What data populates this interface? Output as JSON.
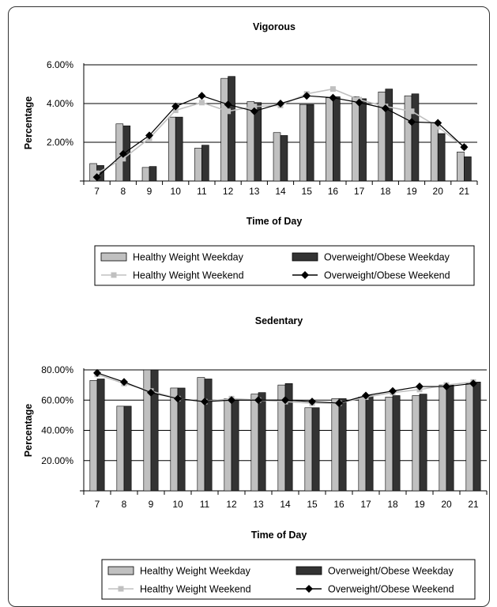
{
  "chart_data": [
    {
      "type": "bar",
      "title": "Vigorous",
      "xlabel": "Time of Day",
      "ylabel": "Percentage",
      "ylim": [
        0,
        6
      ],
      "yticks": [
        "2.00%",
        "4.00%",
        "6.00%"
      ],
      "categories": [
        "7",
        "8",
        "9",
        "10",
        "11",
        "12",
        "13",
        "14",
        "15",
        "16",
        "17",
        "18",
        "19",
        "20",
        "21"
      ],
      "series": [
        {
          "name": "Healthy Weight Weekday",
          "kind": "bar",
          "color": "#c0c0c0",
          "values": [
            0.9,
            2.95,
            0.7,
            3.3,
            1.7,
            5.3,
            4.1,
            2.5,
            3.95,
            4.3,
            4.35,
            4.6,
            4.4,
            3.0,
            1.5
          ]
        },
        {
          "name": "Overweight/Obese Weekday",
          "kind": "bar",
          "color": "#333333",
          "values": [
            0.8,
            2.85,
            0.75,
            3.3,
            1.85,
            5.4,
            4.05,
            2.35,
            3.95,
            4.35,
            4.25,
            4.75,
            4.5,
            2.45,
            1.25
          ]
        },
        {
          "name": "Healthy Weight Weekend",
          "kind": "line",
          "color": "#c0c0c0",
          "values": [
            0.4,
            1.15,
            2.2,
            3.65,
            4.05,
            3.6,
            3.85,
            3.9,
            4.5,
            4.75,
            4.2,
            3.85,
            3.6,
            2.8,
            1.75
          ]
        },
        {
          "name": "Overweight/Obese Weekend",
          "kind": "line",
          "color": "#000000",
          "values": [
            0.2,
            1.4,
            2.35,
            3.85,
            4.4,
            3.95,
            3.6,
            4.0,
            4.4,
            4.3,
            4.05,
            3.75,
            3.05,
            3.0,
            1.75
          ]
        }
      ]
    },
    {
      "type": "bar",
      "title": "Sedentary",
      "xlabel": "Time of Day",
      "ylabel": "Percentage",
      "ylim": [
        0,
        80
      ],
      "yticks": [
        "20.00%",
        "40.00%",
        "60.00%",
        "80.00%"
      ],
      "categories": [
        "7",
        "8",
        "9",
        "10",
        "11",
        "12",
        "13",
        "14",
        "15",
        "16",
        "17",
        "18",
        "19",
        "20",
        "21"
      ],
      "series": [
        {
          "name": "Healthy Weight Weekday",
          "kind": "bar",
          "color": "#c0c0c0",
          "values": [
            73,
            56,
            80,
            68,
            75,
            61,
            64,
            70,
            55,
            61,
            62,
            62,
            63,
            70,
            71
          ]
        },
        {
          "name": "Overweight/Obese Weekday",
          "kind": "bar",
          "color": "#333333",
          "values": [
            74,
            56,
            80,
            68,
            74,
            60,
            65,
            71,
            55,
            61,
            63,
            63,
            64,
            70,
            72
          ]
        },
        {
          "name": "Healthy Weight Weekend",
          "kind": "line",
          "color": "#c0c0c0",
          "values": [
            77,
            71,
            66,
            61,
            59,
            61,
            60,
            59,
            58,
            58,
            62,
            65,
            67,
            70,
            72
          ]
        },
        {
          "name": "Overweight/Obese Weekend",
          "kind": "line",
          "color": "#000000",
          "values": [
            78,
            72,
            65,
            61,
            59,
            60,
            60,
            60,
            59,
            58,
            63,
            66,
            69,
            69,
            71
          ]
        }
      ]
    }
  ]
}
